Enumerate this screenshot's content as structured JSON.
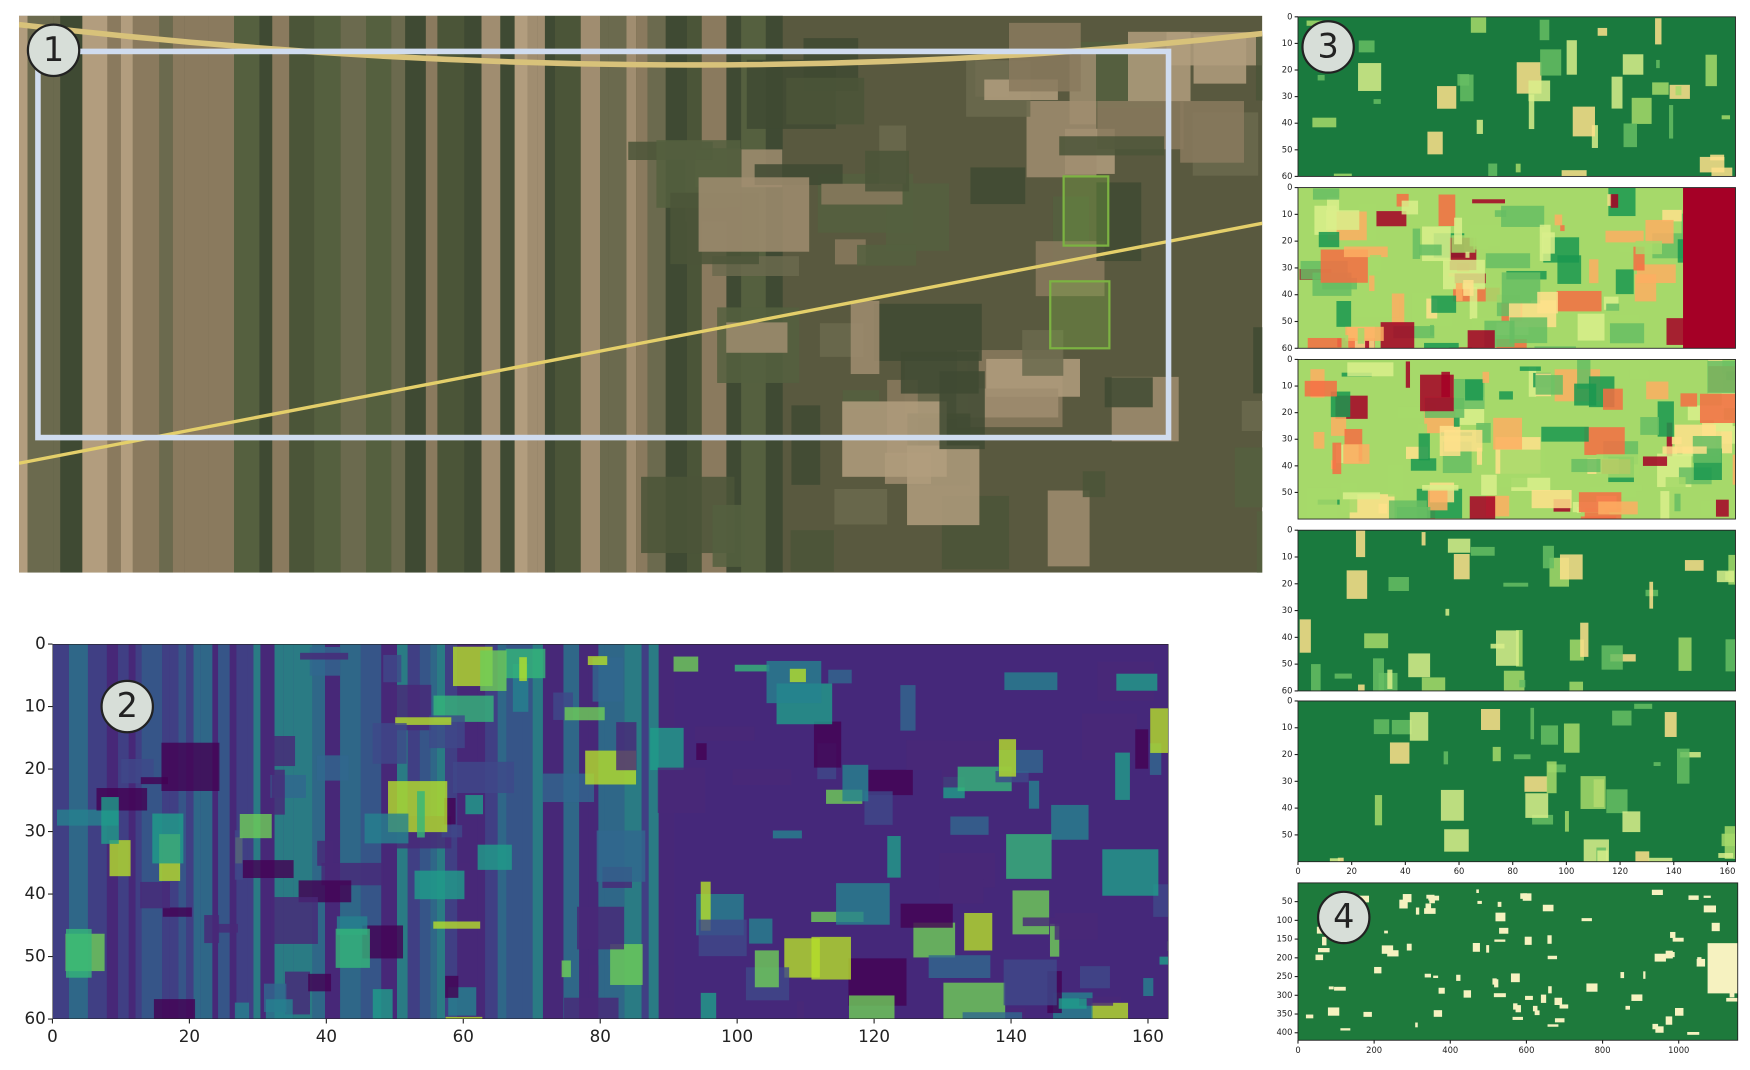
{
  "panels": [
    {
      "label": "1"
    },
    {
      "label": "2",
      "xlim": [
        0,
        163
      ],
      "ylim": [
        0,
        60
      ],
      "xticks": [
        0,
        20,
        40,
        60,
        80,
        100,
        120,
        140,
        160
      ],
      "yticks": [
        0,
        10,
        20,
        30,
        40,
        50,
        60
      ]
    },
    {
      "label": "3",
      "xlim": [
        0,
        163
      ],
      "ylim": [
        0,
        60
      ],
      "xticks": [
        0,
        20,
        40,
        60,
        80,
        100,
        120,
        140,
        160
      ],
      "subplots": [
        {
          "yticks": [
            0,
            10,
            20,
            30,
            40,
            50,
            60
          ]
        },
        {
          "yticks": [
            0,
            10,
            20,
            30,
            40,
            50,
            60
          ]
        },
        {
          "yticks": [
            0,
            10,
            20,
            30,
            40,
            50
          ]
        },
        {
          "yticks": [
            0,
            10,
            20,
            30,
            40,
            50,
            60
          ]
        },
        {
          "yticks": [
            0,
            10,
            20,
            30,
            40,
            50
          ]
        }
      ]
    },
    {
      "label": "4",
      "xlim": [
        0,
        1155
      ],
      "ylim": [
        0,
        420
      ],
      "xticks": [
        0,
        200,
        400,
        600,
        800,
        1000
      ],
      "yticks": [
        50,
        100,
        150,
        200,
        250,
        300,
        350,
        400
      ]
    }
  ]
}
